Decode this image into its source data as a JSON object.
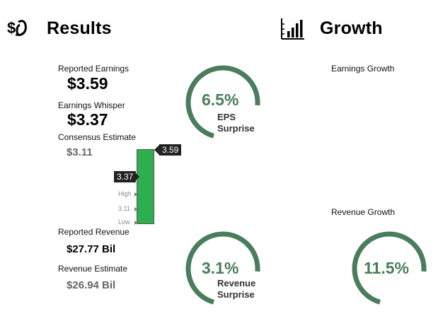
{
  "results": {
    "title": "Results",
    "icon": "money-bag-icon",
    "reported_earnings_label": "Reported Earnings",
    "reported_earnings_value": "$3.59",
    "earnings_whisper_label": "Earnings Whisper",
    "earnings_whisper_value": "$3.37",
    "consensus_label": "Consensus Estimate",
    "consensus_value": "$3.11",
    "bar": {
      "reported": "3.59",
      "whisper": "3.37",
      "high_label": "High",
      "consensus": "3.11",
      "low_label": "Low",
      "color": "#2fae4f"
    },
    "eps_surprise": {
      "pct": "6.5%",
      "line1": "EPS",
      "line2": "Surprise",
      "fraction": 0.72
    },
    "reported_revenue_label": "Reported Revenue",
    "reported_revenue_value": "$27.77 Bil",
    "revenue_estimate_label": "Revenue Estimate",
    "revenue_estimate_value": "$26.94 Bil",
    "revenue_surprise": {
      "pct": "3.1%",
      "line1": "Revenue",
      "line2": "Surprise",
      "fraction": 0.72
    }
  },
  "growth": {
    "title": "Growth",
    "icon": "bar-chart-icon",
    "earnings_growth_label": "Earnings Growth",
    "revenue_growth_label": "Revenue Growth",
    "revenue_growth": {
      "pct": "11.5%",
      "fraction": 0.72
    }
  },
  "colors": {
    "ring": "#4a7d5b",
    "ring_track": "#ffffff"
  }
}
